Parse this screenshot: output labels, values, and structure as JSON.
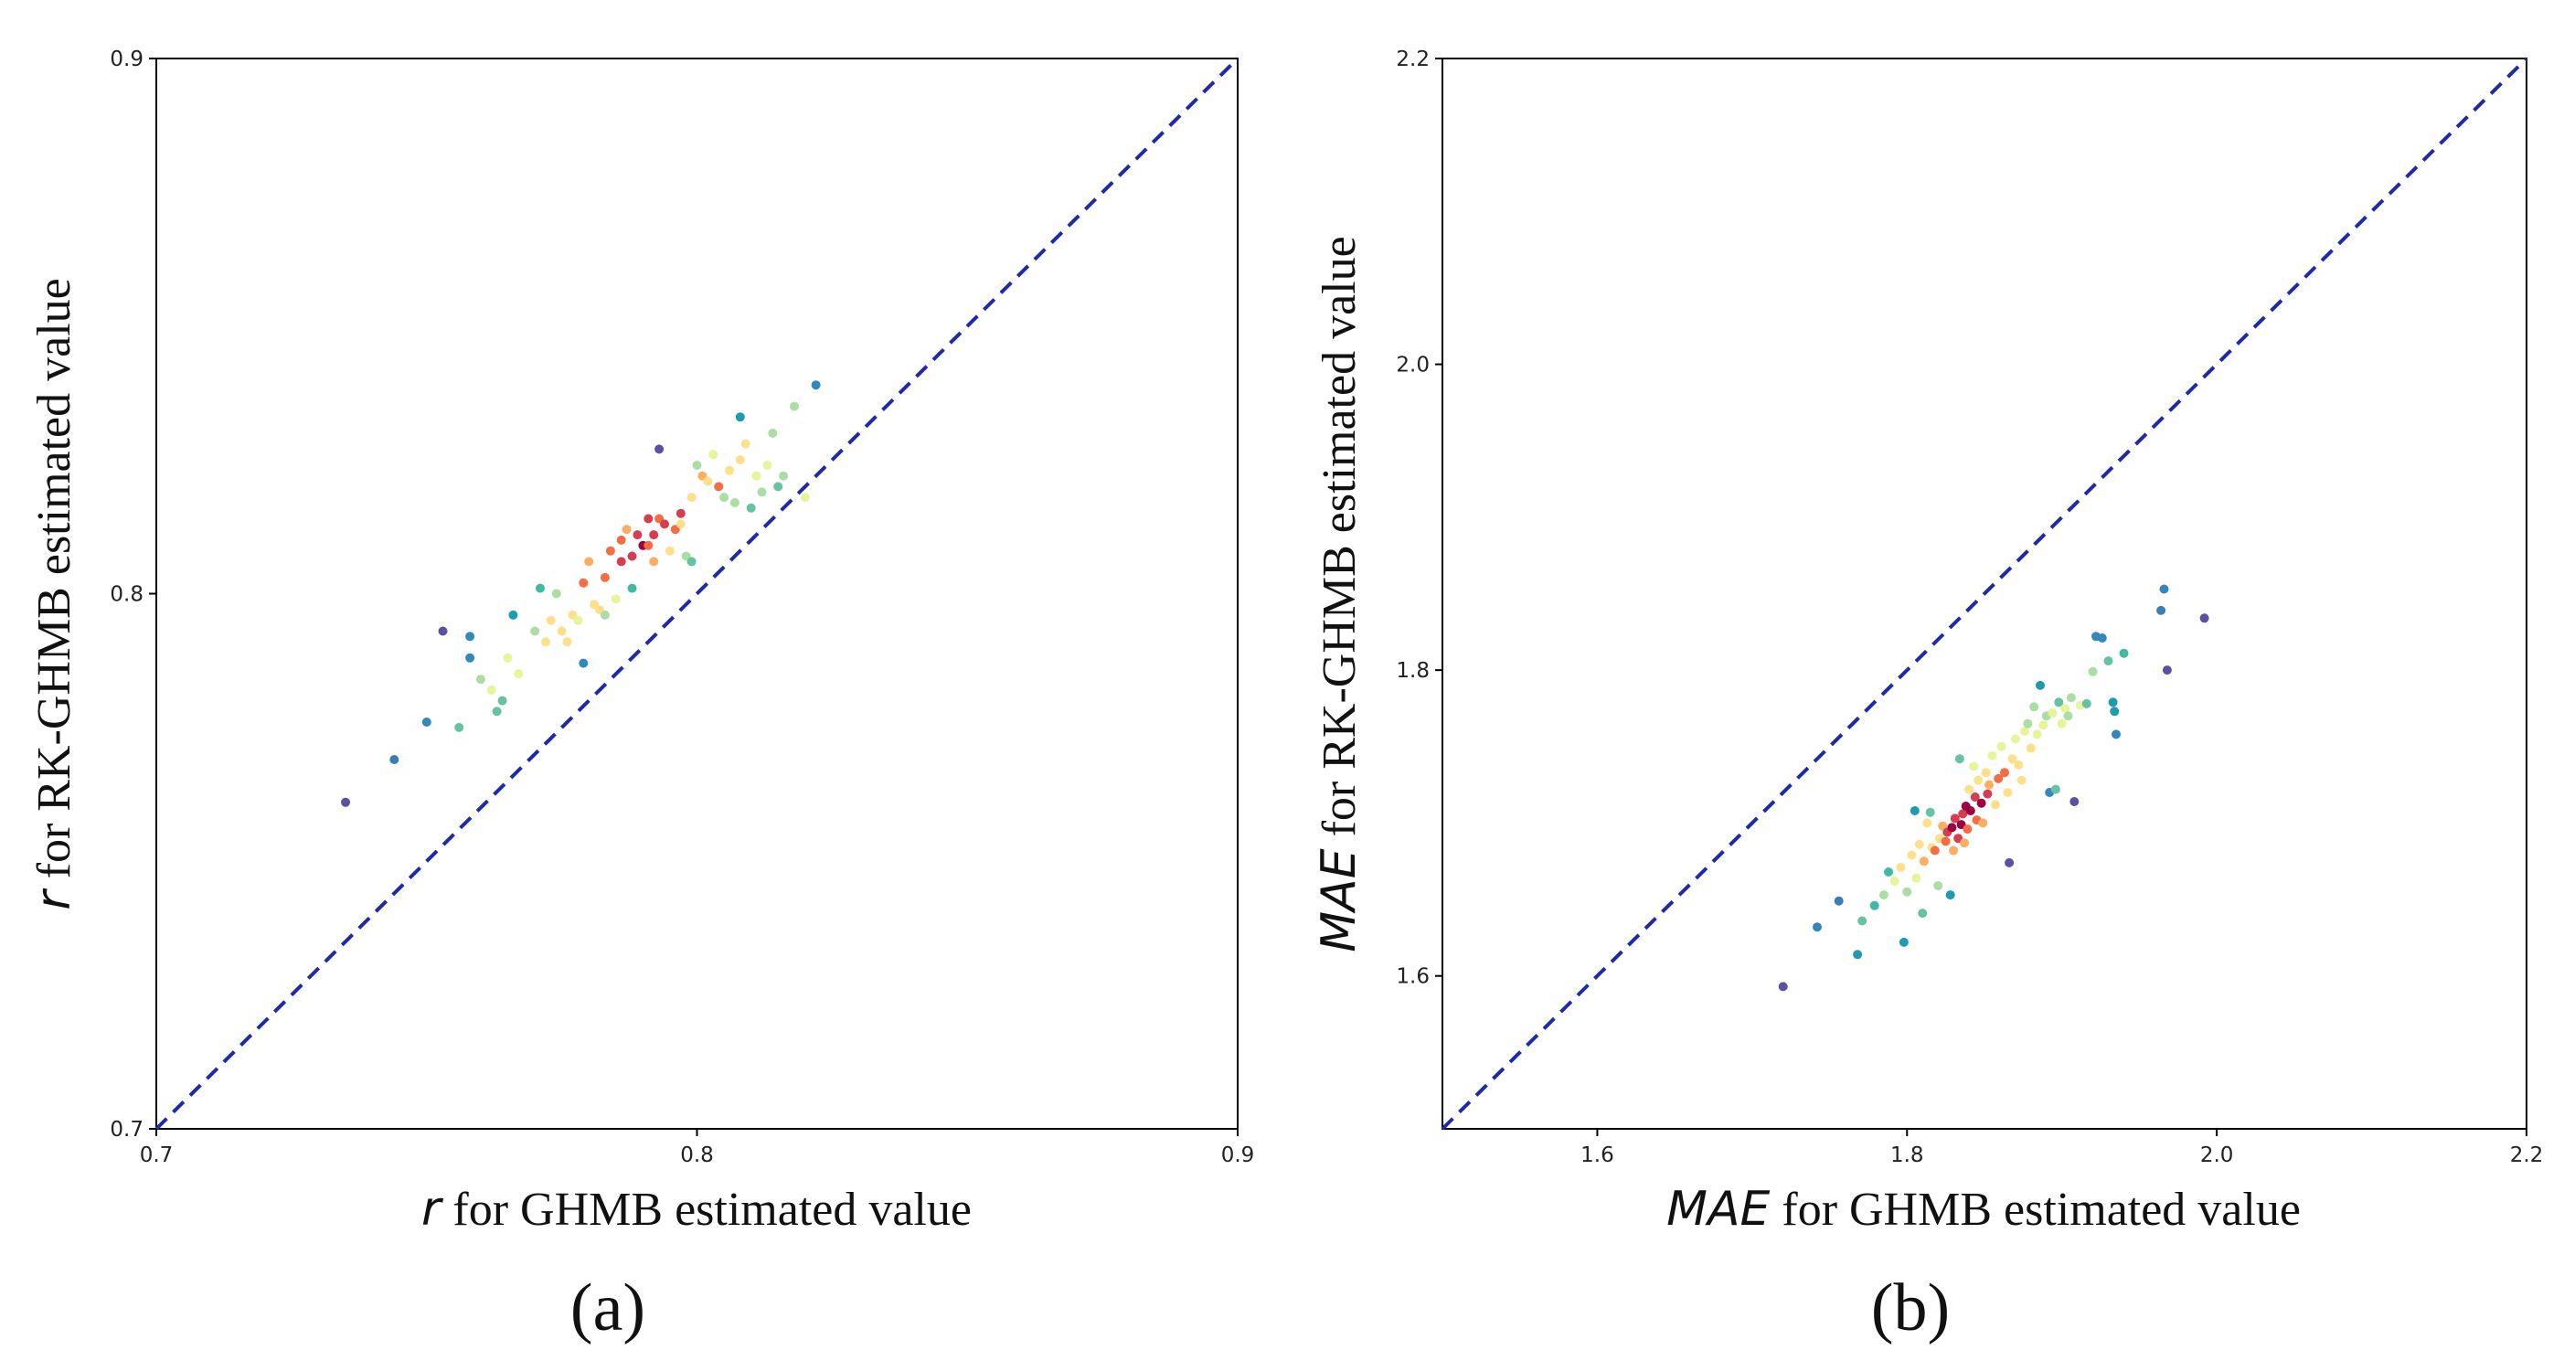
{
  "chart_data": [
    {
      "type": "scatter",
      "panel_label": "(a)",
      "xlabel_var": "r",
      "xlabel_text": " for GHMB estimated value",
      "ylabel_var": "r",
      "ylabel_text": " for RK-GHMB estimated value",
      "xlim": [
        0.7,
        0.9
      ],
      "ylim": [
        0.7,
        0.9
      ],
      "xticks": [
        "0.7",
        "0.8",
        "0.9"
      ],
      "yticks": [
        "0.7",
        "0.8",
        "0.9"
      ],
      "reference_line": "y = x (dashed)",
      "points": [
        [
          0.735,
          0.761,
          "#5e4fa2"
        ],
        [
          0.744,
          0.769,
          "#3a7eb8"
        ],
        [
          0.75,
          0.776,
          "#3288bd"
        ],
        [
          0.753,
          0.793,
          "#5e4fa2"
        ],
        [
          0.756,
          0.775,
          "#66c2a5"
        ],
        [
          0.758,
          0.792,
          "#3288bd"
        ],
        [
          0.758,
          0.788,
          "#3288bd"
        ],
        [
          0.76,
          0.784,
          "#abdda4"
        ],
        [
          0.762,
          0.782,
          "#e6f598"
        ],
        [
          0.763,
          0.778,
          "#66c2a5"
        ],
        [
          0.764,
          0.78,
          "#66c2a5"
        ],
        [
          0.765,
          0.788,
          "#e6f598"
        ],
        [
          0.766,
          0.796,
          "#1e9bb0"
        ],
        [
          0.767,
          0.785,
          "#e6f598"
        ],
        [
          0.77,
          0.793,
          "#abdda4"
        ],
        [
          0.771,
          0.801,
          "#3ebba0"
        ],
        [
          0.772,
          0.791,
          "#fee08b"
        ],
        [
          0.773,
          0.795,
          "#fee08b"
        ],
        [
          0.774,
          0.8,
          "#abdda4"
        ],
        [
          0.775,
          0.793,
          "#fee08b"
        ],
        [
          0.776,
          0.791,
          "#fee08b"
        ],
        [
          0.777,
          0.796,
          "#fee08b"
        ],
        [
          0.778,
          0.795,
          "#e6f598"
        ],
        [
          0.779,
          0.787,
          "#3288bd"
        ],
        [
          0.779,
          0.802,
          "#f46d43"
        ],
        [
          0.78,
          0.806,
          "#fdae61"
        ],
        [
          0.781,
          0.798,
          "#fee08b"
        ],
        [
          0.782,
          0.797,
          "#fee08b"
        ],
        [
          0.783,
          0.803,
          "#f46d43"
        ],
        [
          0.783,
          0.796,
          "#abdda4"
        ],
        [
          0.784,
          0.808,
          "#f46d43"
        ],
        [
          0.785,
          0.799,
          "#e6f598"
        ],
        [
          0.786,
          0.806,
          "#d53e4f"
        ],
        [
          0.786,
          0.81,
          "#f46d43"
        ],
        [
          0.787,
          0.812,
          "#fdae61"
        ],
        [
          0.788,
          0.801,
          "#3ebba0"
        ],
        [
          0.788,
          0.807,
          "#d53e4f"
        ],
        [
          0.789,
          0.811,
          "#d53e4f"
        ],
        [
          0.79,
          0.809,
          "#9e0142"
        ],
        [
          0.791,
          0.814,
          "#d53e4f"
        ],
        [
          0.791,
          0.809,
          "#f46d43"
        ],
        [
          0.792,
          0.811,
          "#d53e4f"
        ],
        [
          0.792,
          0.806,
          "#fdae61"
        ],
        [
          0.793,
          0.814,
          "#f46d43"
        ],
        [
          0.793,
          0.827,
          "#5e4fa2"
        ],
        [
          0.794,
          0.813,
          "#d53e4f"
        ],
        [
          0.795,
          0.808,
          "#fee08b"
        ],
        [
          0.796,
          0.812,
          "#f46d43"
        ],
        [
          0.797,
          0.815,
          "#d53e4f"
        ],
        [
          0.797,
          0.813,
          "#fee08b"
        ],
        [
          0.798,
          0.807,
          "#abdda4"
        ],
        [
          0.799,
          0.806,
          "#66c2a5"
        ],
        [
          0.799,
          0.818,
          "#fee08b"
        ],
        [
          0.8,
          0.824,
          "#abdda4"
        ],
        [
          0.801,
          0.822,
          "#fdae61"
        ],
        [
          0.802,
          0.821,
          "#fee08b"
        ],
        [
          0.803,
          0.826,
          "#e6f598"
        ],
        [
          0.804,
          0.82,
          "#f46d43"
        ],
        [
          0.805,
          0.818,
          "#abdda4"
        ],
        [
          0.806,
          0.823,
          "#fee08b"
        ],
        [
          0.807,
          0.817,
          "#abdda4"
        ],
        [
          0.808,
          0.825,
          "#fee08b"
        ],
        [
          0.808,
          0.833,
          "#1e9bb0"
        ],
        [
          0.809,
          0.828,
          "#fee08b"
        ],
        [
          0.81,
          0.816,
          "#66c2a5"
        ],
        [
          0.811,
          0.822,
          "#e6f598"
        ],
        [
          0.812,
          0.819,
          "#abdda4"
        ],
        [
          0.813,
          0.824,
          "#e6f598"
        ],
        [
          0.814,
          0.83,
          "#abdda4"
        ],
        [
          0.815,
          0.82,
          "#66c2a5"
        ],
        [
          0.816,
          0.822,
          "#abdda4"
        ],
        [
          0.818,
          0.835,
          "#abdda4"
        ],
        [
          0.82,
          0.818,
          "#e6f598"
        ],
        [
          0.822,
          0.839,
          "#3288bd"
        ]
      ]
    },
    {
      "type": "scatter",
      "panel_label": "(b)",
      "xlabel_var": "MAE",
      "xlabel_text": " for GHMB estimated value",
      "ylabel_var": "MAE",
      "ylabel_text": " for RK-GHMB estimated value",
      "xlim": [
        1.5,
        2.2
      ],
      "ylim": [
        1.5,
        2.2
      ],
      "xticks": [
        "1.6",
        "1.8",
        "2.0",
        "2.2"
      ],
      "yticks": [
        "1.6",
        "1.8",
        "2.0",
        "2.2"
      ],
      "reference_line": "y = x (dashed)",
      "points": [
        [
          1.72,
          1.593,
          "#5e4fa2"
        ],
        [
          1.742,
          1.632,
          "#3288bd"
        ],
        [
          1.756,
          1.649,
          "#3a7eb8"
        ],
        [
          1.768,
          1.614,
          "#1e9bb0"
        ],
        [
          1.771,
          1.636,
          "#66c2a5"
        ],
        [
          1.779,
          1.646,
          "#3ebba0"
        ],
        [
          1.785,
          1.653,
          "#abdda4"
        ],
        [
          1.788,
          1.668,
          "#3ebba0"
        ],
        [
          1.792,
          1.662,
          "#e6f598"
        ],
        [
          1.796,
          1.671,
          "#fee08b"
        ],
        [
          1.798,
          1.622,
          "#1e9bb0"
        ],
        [
          1.8,
          1.655,
          "#abdda4"
        ],
        [
          1.803,
          1.679,
          "#fee08b"
        ],
        [
          1.805,
          1.708,
          "#1e9bb0"
        ],
        [
          1.806,
          1.664,
          "#e6f598"
        ],
        [
          1.808,
          1.686,
          "#fee08b"
        ],
        [
          1.81,
          1.641,
          "#66c2a5"
        ],
        [
          1.811,
          1.675,
          "#fdae61"
        ],
        [
          1.813,
          1.7,
          "#fee08b"
        ],
        [
          1.815,
          1.707,
          "#66c2a5"
        ],
        [
          1.816,
          1.684,
          "#fee08b"
        ],
        [
          1.818,
          1.682,
          "#f46d43"
        ],
        [
          1.82,
          1.659,
          "#abdda4"
        ],
        [
          1.821,
          1.69,
          "#fee08b"
        ],
        [
          1.823,
          1.698,
          "#fdae61"
        ],
        [
          1.825,
          1.688,
          "#f46d43"
        ],
        [
          1.826,
          1.694,
          "#d53e4f"
        ],
        [
          1.828,
          1.653,
          "#1e9bb0"
        ],
        [
          1.829,
          1.697,
          "#9e0142"
        ],
        [
          1.83,
          1.682,
          "#fdae61"
        ],
        [
          1.831,
          1.703,
          "#d53e4f"
        ],
        [
          1.833,
          1.69,
          "#d53e4f"
        ],
        [
          1.834,
          1.742,
          "#66c2a5"
        ],
        [
          1.835,
          1.699,
          "#9e0142"
        ],
        [
          1.836,
          1.706,
          "#d53e4f"
        ],
        [
          1.837,
          1.687,
          "#fdae61"
        ],
        [
          1.838,
          1.711,
          "#9e0142"
        ],
        [
          1.839,
          1.696,
          "#f46d43"
        ],
        [
          1.84,
          1.722,
          "#fee08b"
        ],
        [
          1.841,
          1.708,
          "#9e0142"
        ],
        [
          1.843,
          1.737,
          "#e6f598"
        ],
        [
          1.844,
          1.717,
          "#d53e4f"
        ],
        [
          1.845,
          1.702,
          "#f46d43"
        ],
        [
          1.846,
          1.728,
          "#fee08b"
        ],
        [
          1.848,
          1.713,
          "#9e0142"
        ],
        [
          1.849,
          1.7,
          "#fdae61"
        ],
        [
          1.851,
          1.733,
          "#fee08b"
        ],
        [
          1.852,
          1.719,
          "#d53e4f"
        ],
        [
          1.853,
          1.725,
          "#fdae61"
        ],
        [
          1.855,
          1.744,
          "#e6f598"
        ],
        [
          1.857,
          1.712,
          "#fee08b"
        ],
        [
          1.859,
          1.729,
          "#f46d43"
        ],
        [
          1.861,
          1.75,
          "#e6f598"
        ],
        [
          1.863,
          1.733,
          "#f46d43"
        ],
        [
          1.865,
          1.72,
          "#fee08b"
        ],
        [
          1.866,
          1.674,
          "#5e4fa2"
        ],
        [
          1.868,
          1.742,
          "#fee08b"
        ],
        [
          1.87,
          1.755,
          "#e6f598"
        ],
        [
          1.872,
          1.738,
          "#fee08b"
        ],
        [
          1.874,
          1.728,
          "#fee08b"
        ],
        [
          1.876,
          1.76,
          "#e6f598"
        ],
        [
          1.878,
          1.765,
          "#abdda4"
        ],
        [
          1.88,
          1.749,
          "#fee08b"
        ],
        [
          1.882,
          1.776,
          "#abdda4"
        ],
        [
          1.884,
          1.758,
          "#e6f598"
        ],
        [
          1.886,
          1.79,
          "#1e9bb0"
        ],
        [
          1.888,
          1.764,
          "#e6f598"
        ],
        [
          1.89,
          1.77,
          "#abdda4"
        ],
        [
          1.892,
          1.72,
          "#3288bd"
        ],
        [
          1.894,
          1.772,
          "#e6f598"
        ],
        [
          1.896,
          1.722,
          "#66c2a5"
        ],
        [
          1.898,
          1.779,
          "#66c2a5"
        ],
        [
          1.9,
          1.765,
          "#e6f598"
        ],
        [
          1.902,
          1.775,
          "#e6f598"
        ],
        [
          1.904,
          1.77,
          "#abdda4"
        ],
        [
          1.906,
          1.782,
          "#abdda4"
        ],
        [
          1.908,
          1.714,
          "#5e4fa2"
        ],
        [
          1.912,
          1.777,
          "#e6f598"
        ],
        [
          1.916,
          1.778,
          "#66c2a5"
        ],
        [
          1.92,
          1.799,
          "#abdda4"
        ],
        [
          1.922,
          1.822,
          "#3288bd"
        ],
        [
          1.926,
          1.821,
          "#3288bd"
        ],
        [
          1.93,
          1.806,
          "#66c2a5"
        ],
        [
          1.933,
          1.779,
          "#1e9bb0"
        ],
        [
          1.934,
          1.773,
          "#1e9bb0"
        ],
        [
          1.935,
          1.758,
          "#3288bd"
        ],
        [
          1.94,
          1.811,
          "#3ebba0"
        ],
        [
          1.964,
          1.839,
          "#3a7eb8"
        ],
        [
          1.966,
          1.853,
          "#3288bd"
        ],
        [
          1.968,
          1.8,
          "#5e4fa2"
        ],
        [
          1.992,
          1.834,
          "#5e4fa2"
        ]
      ]
    }
  ]
}
